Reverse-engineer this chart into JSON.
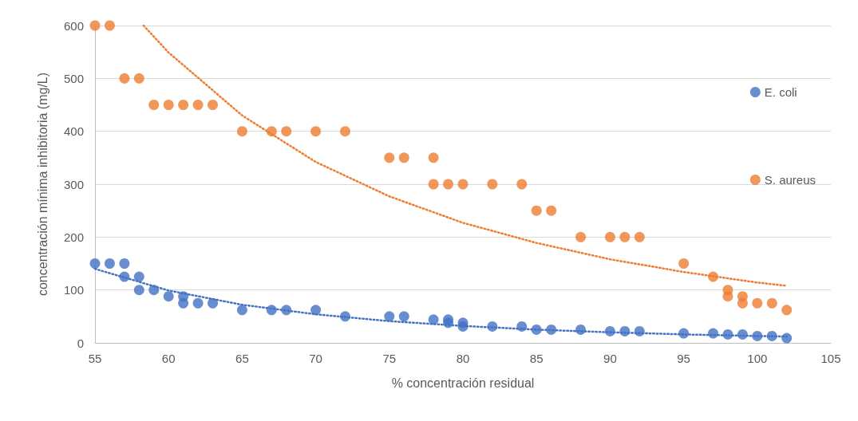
{
  "chart_data": {
    "type": "scatter",
    "xlabel": "% concentración residual",
    "ylabel": "concentración mínima inhibitoria (mg/L)",
    "xlim": [
      55,
      105
    ],
    "xticks": [
      55,
      60,
      65,
      70,
      75,
      80,
      85,
      90,
      95,
      100,
      105
    ],
    "ylim": [
      0,
      600
    ],
    "yticks": [
      0,
      100,
      200,
      300,
      400,
      500,
      600
    ],
    "grid": "y",
    "legend": "right",
    "marker": "circle",
    "series": [
      {
        "name": "E. coli",
        "color": "#4472c4",
        "x": [
          55,
          56,
          57,
          57,
          58,
          58,
          59,
          60,
          61,
          61,
          62,
          63,
          65,
          67,
          68,
          70,
          72,
          75,
          76,
          78,
          79,
          79,
          80,
          80,
          82,
          84,
          85,
          86,
          88,
          90,
          91,
          92,
          95,
          97,
          98,
          99,
          100,
          101,
          102
        ],
        "values": [
          150,
          150,
          150,
          125,
          125,
          100,
          100,
          88,
          88,
          75,
          75,
          75,
          62,
          62,
          62,
          62,
          50,
          50,
          50,
          44,
          44,
          38,
          38,
          31,
          31,
          31,
          25,
          25,
          25,
          22,
          22,
          22,
          18,
          18,
          16,
          16,
          13,
          13,
          9
        ]
      },
      {
        "name": "S. aureus",
        "color": "#ed7d31",
        "x": [
          55,
          56,
          57,
          58,
          59,
          60,
          61,
          62,
          63,
          65,
          67,
          68,
          70,
          72,
          75,
          76,
          78,
          78,
          79,
          80,
          82,
          84,
          85,
          86,
          88,
          90,
          91,
          92,
          95,
          97,
          98,
          98,
          99,
          99,
          100,
          101,
          102
        ],
        "values": [
          600,
          600,
          500,
          500,
          450,
          450,
          450,
          450,
          450,
          400,
          400,
          400,
          400,
          400,
          350,
          350,
          350,
          300,
          300,
          300,
          300,
          300,
          250,
          250,
          200,
          200,
          200,
          200,
          150,
          125,
          100,
          88,
          88,
          75,
          75,
          75,
          62
        ]
      },
      {
        "type": "line",
        "color": "#4472c4",
        "line_style": "dotted",
        "marker": "none",
        "x": [
          55,
          60,
          65,
          70,
          75,
          80,
          85,
          90,
          95,
          100,
          102
        ],
        "values": [
          140,
          99,
          72,
          54,
          41,
          32,
          25,
          20,
          16,
          13,
          12
        ]
      },
      {
        "type": "line",
        "color": "#ed7d31",
        "line_style": "dotted",
        "marker": "none",
        "x": [
          58.3,
          60,
          65,
          70,
          75,
          80,
          85,
          90,
          95,
          100,
          102
        ],
        "values": [
          600,
          549,
          430,
          342,
          277,
          227,
          189,
          158,
          134,
          114,
          108
        ]
      }
    ]
  }
}
